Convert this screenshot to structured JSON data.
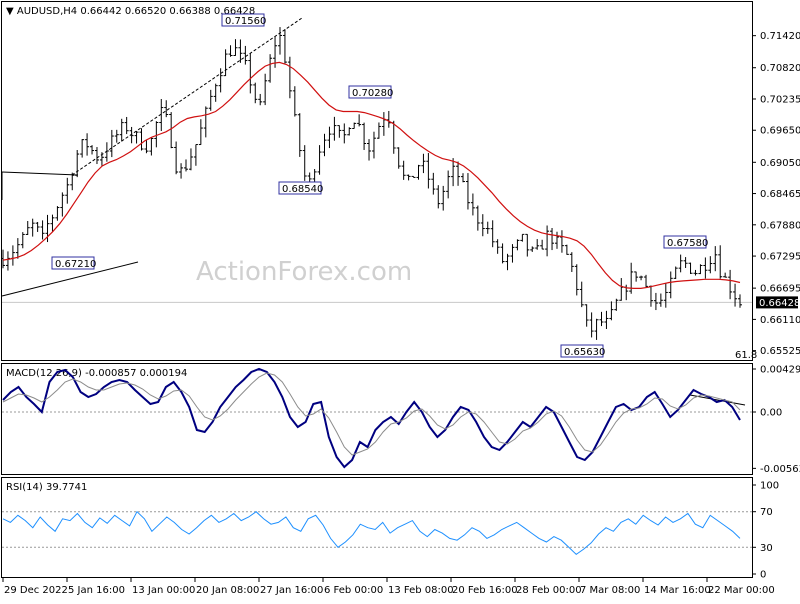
{
  "chart_data": [
    {
      "type": "ohlc",
      "header": {
        "symbol": "AUDUSD,H4",
        "open": "0.66442",
        "high": "0.66520",
        "low": "0.66388",
        "close": "0.66428"
      },
      "watermark": "ActionForex.com",
      "ylim": [
        0.6535,
        0.7205
      ],
      "ytick_labels": [
        "0.71420",
        "0.70820",
        "0.70235",
        "0.69650",
        "0.69050",
        "0.68465",
        "0.67880",
        "0.67295",
        "0.66695",
        "0.66110",
        "0.65525"
      ],
      "ytick_values": [
        0.7142,
        0.7082,
        0.70235,
        0.6965,
        0.6905,
        0.68465,
        0.6788,
        0.67295,
        0.66695,
        0.6611,
        0.65525
      ],
      "current_price_label": "0.66428",
      "current_price": 0.66428,
      "fib_label": "61.8",
      "annotations": [
        {
          "label": "0.67210",
          "x": "4 Jan",
          "y": 0.6721
        },
        {
          "label": "0.71560",
          "x": "1 Feb",
          "y": 0.7156
        },
        {
          "label": "0.68540",
          "x": "7 Feb",
          "y": 0.6854
        },
        {
          "label": "0.70280",
          "x": "14 Feb",
          "y": 0.7028
        },
        {
          "label": "0.65630",
          "x": "9 Mar",
          "y": 0.6563
        },
        {
          "label": "0.67580",
          "x": "21 Mar",
          "y": 0.6758
        }
      ],
      "xtick_labels": [
        "29 Dec 2022",
        "5 Jan 16:00",
        "13 Jan 00:00",
        "20 Jan 08:00",
        "27 Jan 16:00",
        "6 Feb 00:00",
        "13 Feb 08:00",
        "20 Feb 16:00",
        "28 Feb 00:00",
        "7 Mar 08:00",
        "14 Mar 16:00",
        "22 Mar 00:00"
      ],
      "close_path": [
        0.6725,
        0.6735,
        0.6745,
        0.676,
        0.678,
        0.679,
        0.6755,
        0.679,
        0.681,
        0.684,
        0.686,
        0.69,
        0.6935,
        0.694,
        0.6925,
        0.691,
        0.693,
        0.6945,
        0.696,
        0.6975,
        0.696,
        0.695,
        0.6935,
        0.694,
        0.698,
        0.7005,
        0.696,
        0.69,
        0.6885,
        0.691,
        0.6935,
        0.697,
        0.701,
        0.705,
        0.708,
        0.711,
        0.712,
        0.71,
        0.708,
        0.704,
        0.7,
        0.706,
        0.711,
        0.715,
        0.71,
        0.702,
        0.695,
        0.688,
        0.6865,
        0.692,
        0.695,
        0.697,
        0.696,
        0.6945,
        0.698,
        0.699,
        0.696,
        0.693,
        0.6955,
        0.6985,
        0.7,
        0.694,
        0.6895,
        0.686,
        0.688,
        0.6905,
        0.689,
        0.685,
        0.683,
        0.686,
        0.689,
        0.688,
        0.685,
        0.682,
        0.68,
        0.679,
        0.677,
        0.674,
        0.672,
        0.673,
        0.6745,
        0.676,
        0.674,
        0.673,
        0.675,
        0.677,
        0.676,
        0.6745,
        0.673,
        0.67,
        0.665,
        0.66,
        0.659,
        0.661,
        0.66,
        0.662,
        0.665,
        0.667,
        0.669,
        0.67,
        0.668,
        0.666,
        0.664,
        0.665,
        0.667,
        0.67,
        0.672,
        0.671,
        0.67,
        0.671,
        0.672,
        0.674,
        0.67,
        0.668,
        0.666,
        0.6643
      ],
      "ma_path": [
        0.6722,
        0.6724,
        0.6727,
        0.6732,
        0.674,
        0.675,
        0.6762,
        0.6775,
        0.679,
        0.6808,
        0.6828,
        0.6848,
        0.6868,
        0.6885,
        0.6898,
        0.6905,
        0.691,
        0.6917,
        0.6925,
        0.6935,
        0.6945,
        0.6952,
        0.6957,
        0.6962,
        0.697,
        0.698,
        0.6987,
        0.699,
        0.6992,
        0.6995,
        0.7,
        0.701,
        0.7022,
        0.7036,
        0.705,
        0.7063,
        0.7075,
        0.7085,
        0.709,
        0.7092,
        0.7088,
        0.708,
        0.7068,
        0.7055,
        0.704,
        0.7025,
        0.7012,
        0.7003,
        0.7,
        0.7,
        0.7,
        0.6998,
        0.6994,
        0.699,
        0.6985,
        0.6978,
        0.6968,
        0.6956,
        0.6945,
        0.6935,
        0.6926,
        0.6918,
        0.6912,
        0.6909,
        0.6905,
        0.6898,
        0.6888,
        0.6876,
        0.6862,
        0.6848,
        0.6832,
        0.6818,
        0.6805,
        0.6794,
        0.6785,
        0.6778,
        0.6773,
        0.677,
        0.6768,
        0.6766,
        0.6763,
        0.6758,
        0.6748,
        0.6733,
        0.6715,
        0.6698,
        0.6684,
        0.6674,
        0.667,
        0.6669,
        0.6669,
        0.6671,
        0.6674,
        0.6677,
        0.668,
        0.6682,
        0.6683,
        0.6684,
        0.6685,
        0.6686,
        0.6686,
        0.6686,
        0.6685,
        0.6683,
        0.668
      ]
    },
    {
      "type": "line",
      "header": "MACD(12,26,9) -0.000857 0.000194",
      "ylim": [
        -0.0062,
        0.0048
      ],
      "ytick_labels": [
        "0.004299",
        "0.00",
        "-0.005636"
      ],
      "ytick_values": [
        0.004299,
        0.0,
        -0.005636
      ],
      "series": [
        {
          "values": [
            0.0012,
            0.002,
            0.0025,
            0.0015,
            0.0008,
            0.0,
            0.003,
            0.004,
            0.0042,
            0.0035,
            0.002,
            0.0015,
            0.0018,
            0.0025,
            0.003,
            0.0032,
            0.003,
            0.0022,
            0.0015,
            0.0008,
            0.001,
            0.0025,
            0.003,
            0.002,
            0.0005,
            -0.0018,
            -0.002,
            -0.001,
            0.0005,
            0.0015,
            0.0025,
            0.0032,
            0.004,
            0.0043,
            0.004,
            0.003,
            0.0015,
            -0.0005,
            -0.0015,
            -0.001,
            0.0008,
            0.001,
            -0.0025,
            -0.0045,
            -0.0055,
            -0.0048,
            -0.003,
            -0.0035,
            -0.0018,
            -0.001,
            -0.0005,
            -0.0012,
            0.0,
            0.001,
            0.0,
            -0.0015,
            -0.0025,
            -0.0018,
            -0.0005,
            0.0005,
            0.0002,
            -0.001,
            -0.0025,
            -0.0035,
            -0.0038,
            -0.003,
            -0.002,
            -0.001,
            -0.0015,
            -0.0005,
            0.0005,
            0.0,
            -0.0015,
            -0.003,
            -0.0045,
            -0.0048,
            -0.004,
            -0.0025,
            -0.001,
            0.0005,
            0.0008,
            0.0002,
            0.0005,
            0.0015,
            0.002,
            0.0008,
            -0.0005,
            0.0002,
            0.0012,
            0.0022,
            0.0018,
            0.0015,
            0.001,
            0.0012,
            0.0005,
            -0.0008
          ]
        },
        {
          "values": [
            0.001,
            0.0014,
            0.0018,
            0.0017,
            0.0014,
            0.001,
            0.0015,
            0.0022,
            0.003,
            0.0033,
            0.003,
            0.0025,
            0.0022,
            0.0022,
            0.0025,
            0.0028,
            0.0029,
            0.0027,
            0.0023,
            0.0017,
            0.0013,
            0.0016,
            0.0021,
            0.0022,
            0.0016,
            0.0005,
            -0.0005,
            -0.0008,
            -0.0004,
            0.0003,
            0.0012,
            0.002,
            0.0028,
            0.0035,
            0.0039,
            0.0037,
            0.003,
            0.0018,
            0.0005,
            -0.0004,
            -0.0002,
            0.0003,
            -0.0006,
            -0.002,
            -0.0035,
            -0.0043,
            -0.004,
            -0.0037,
            -0.003,
            -0.002,
            -0.0012,
            -0.001,
            -0.0006,
            0.0001,
            0.0003,
            -0.0004,
            -0.0013,
            -0.0017,
            -0.0013,
            -0.0005,
            0.0,
            -0.0002,
            -0.001,
            -0.002,
            -0.003,
            -0.0032,
            -0.0027,
            -0.0019,
            -0.0016,
            -0.001,
            -0.0002,
            0.0001,
            -0.0004,
            -0.0015,
            -0.0028,
            -0.0038,
            -0.004,
            -0.0033,
            -0.0022,
            -0.001,
            -0.0001,
            0.0003,
            0.0004,
            0.0008,
            0.0014,
            0.0013,
            0.0006,
            0.0003,
            0.0007,
            0.0014,
            0.0017,
            0.0016,
            0.0014,
            0.0012,
            0.001,
            0.0002
          ]
        }
      ]
    },
    {
      "type": "line",
      "header": "RSI(14) 39.7741",
      "ylim": [
        0,
        100
      ],
      "ytick_labels": [
        "100",
        "70",
        "30",
        "0"
      ],
      "ytick_values": [
        100,
        70,
        30,
        0
      ],
      "series": [
        {
          "values": [
            62,
            58,
            66,
            60,
            52,
            64,
            55,
            48,
            62,
            60,
            68,
            58,
            52,
            63,
            57,
            66,
            60,
            54,
            70,
            62,
            48,
            56,
            64,
            58,
            50,
            45,
            52,
            60,
            66,
            58,
            62,
            68,
            60,
            64,
            70,
            62,
            56,
            58,
            64,
            52,
            48,
            62,
            66,
            55,
            40,
            30,
            36,
            44,
            56,
            52,
            50,
            58,
            46,
            52,
            56,
            60,
            48,
            42,
            50,
            46,
            40,
            38,
            44,
            52,
            48,
            40,
            44,
            50,
            54,
            58,
            52,
            46,
            40,
            36,
            42,
            38,
            30,
            22,
            28,
            35,
            45,
            52,
            48,
            58,
            62,
            56,
            66,
            60,
            55,
            64,
            58,
            62,
            68,
            56,
            52,
            66,
            60,
            54,
            48,
            40
          ]
        }
      ]
    }
  ]
}
